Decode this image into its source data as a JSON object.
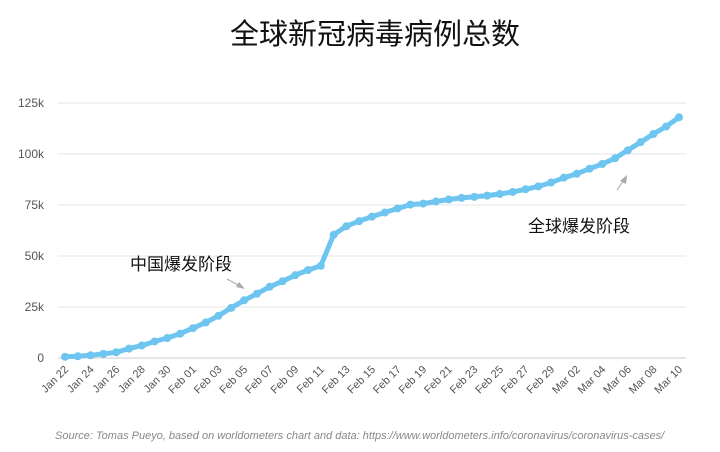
{
  "chart_data": {
    "type": "line",
    "title": "全球新冠病毒病例总数",
    "xlabel": "",
    "ylabel": "",
    "ylim": [
      0,
      125000
    ],
    "yticks": [
      {
        "value": 0,
        "label": "0"
      },
      {
        "value": 25000,
        "label": "25k"
      },
      {
        "value": 50000,
        "label": "50k"
      },
      {
        "value": 75000,
        "label": "75k"
      },
      {
        "value": 100000,
        "label": "100k"
      },
      {
        "value": 125000,
        "label": "125k"
      }
    ],
    "xtick_labels": [
      "Jan 22",
      "Jan 24",
      "Jan 26",
      "Jan 28",
      "Jan 30",
      "Feb 01",
      "Feb 03",
      "Feb 05",
      "Feb 07",
      "Feb 09",
      "Feb 11",
      "Feb 13",
      "Feb 15",
      "Feb 17",
      "Feb 19",
      "Feb 21",
      "Feb 23",
      "Feb 25",
      "Feb 27",
      "Feb 29",
      "Mar 02",
      "Mar 04",
      "Mar 06",
      "Mar 08",
      "Mar 10"
    ],
    "grid": true,
    "line_color": "#6ec6f0",
    "series": [
      {
        "x": [
          "Jan 22",
          "Jan 23",
          "Jan 24",
          "Jan 25",
          "Jan 26",
          "Jan 27",
          "Jan 28",
          "Jan 29",
          "Jan 30",
          "Jan 31",
          "Feb 01",
          "Feb 02",
          "Feb 03",
          "Feb 04",
          "Feb 05",
          "Feb 06",
          "Feb 07",
          "Feb 08",
          "Feb 09",
          "Feb 10",
          "Feb 11",
          "Feb 12",
          "Feb 13",
          "Feb 14",
          "Feb 15",
          "Feb 16",
          "Feb 17",
          "Feb 18",
          "Feb 19",
          "Feb 20",
          "Feb 21",
          "Feb 22",
          "Feb 23",
          "Feb 24",
          "Feb 25",
          "Feb 26",
          "Feb 27",
          "Feb 28",
          "Feb 29",
          "Mar 01",
          "Mar 02",
          "Mar 03",
          "Mar 04",
          "Mar 05",
          "Mar 06",
          "Mar 07",
          "Mar 08",
          "Mar 09",
          "Mar 10"
        ],
        "values": [
          580,
          845,
          1320,
          2020,
          2800,
          4600,
          6100,
          8100,
          9800,
          11900,
          14600,
          17400,
          20700,
          24600,
          28300,
          31500,
          34900,
          37600,
          40600,
          43100,
          45200,
          60400,
          64600,
          67100,
          69300,
          71300,
          73300,
          75200,
          75700,
          76700,
          77700,
          78500,
          79000,
          79600,
          80400,
          81400,
          82700,
          84100,
          86000,
          88400,
          90300,
          92800,
          95100,
          97900,
          101800,
          105800,
          109800,
          113500,
          118000
        ]
      }
    ],
    "annotations": [
      {
        "text": "中国爆发阶段"
      },
      {
        "text": "全球爆发阶段"
      }
    ],
    "source": "Source: Tomas Pueyo, based on worldometers chart and data: https://www.worldometers.info/coronavirus/coronavirus-cases/"
  }
}
